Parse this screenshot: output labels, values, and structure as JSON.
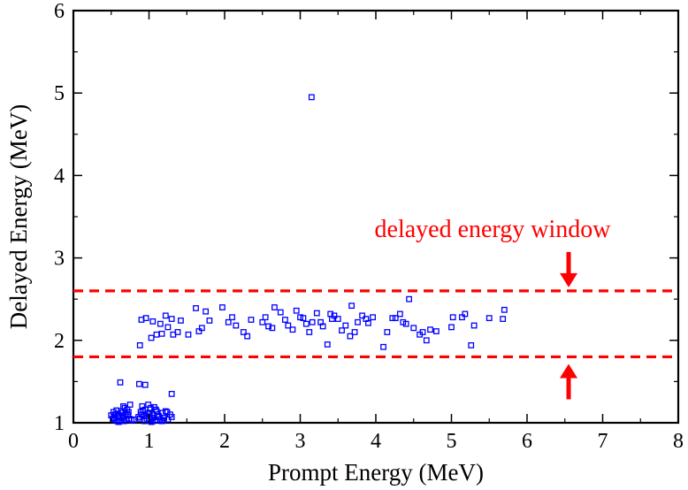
{
  "chart_data": {
    "type": "scatter",
    "title": "",
    "xlabel": "Prompt Energy (MeV)",
    "ylabel": "Delayed Energy (MeV)",
    "xlim": [
      0,
      8
    ],
    "ylim": [
      1,
      6
    ],
    "xticks": [
      0,
      1,
      2,
      3,
      4,
      5,
      6,
      7,
      8
    ],
    "yticks": [
      1,
      2,
      3,
      4,
      5,
      6
    ],
    "grid": false,
    "legend": "none",
    "marker": "open-square",
    "marker_color": "#0000ff",
    "annotation_color": "#ff0000",
    "annotation": {
      "text": "delayed energy window",
      "window_lines": [
        1.8,
        2.6
      ],
      "arrow_x": 6.55
    },
    "series": [
      {
        "points": [
          [
            0.52,
            1.05
          ],
          [
            0.55,
            1.1
          ],
          [
            0.57,
            1.15
          ],
          [
            0.6,
            1.08
          ],
          [
            0.62,
            1.03
          ],
          [
            0.64,
            1.12
          ],
          [
            0.66,
            1.06
          ],
          [
            0.68,
            1.18
          ],
          [
            0.7,
            1.04
          ],
          [
            0.72,
            1.09
          ],
          [
            0.75,
            1.22
          ],
          [
            0.53,
            1.13
          ],
          [
            0.58,
            1.02
          ],
          [
            0.61,
            1.07
          ],
          [
            0.63,
            1.14
          ],
          [
            0.67,
            1.02
          ],
          [
            0.69,
            1.11
          ],
          [
            0.71,
            1.16
          ],
          [
            0.74,
            1.05
          ],
          [
            0.77,
            1.03
          ],
          [
            0.56,
            1.03
          ],
          [
            0.59,
            1.11
          ],
          [
            0.65,
            1.09
          ],
          [
            0.73,
            1.13
          ],
          [
            0.62,
            1.49
          ],
          [
            0.54,
            1.06
          ],
          [
            0.8,
            1.04
          ],
          [
            0.5,
            1.09
          ],
          [
            0.66,
            1.2
          ],
          [
            0.6,
            1.01
          ],
          [
            0.88,
            1.05
          ],
          [
            0.9,
            1.1
          ],
          [
            0.92,
            1.15
          ],
          [
            0.94,
            1.02
          ],
          [
            0.96,
            1.08
          ],
          [
            0.98,
            1.12
          ],
          [
            1.0,
            1.04
          ],
          [
            1.02,
            1.18
          ],
          [
            1.04,
            1.06
          ],
          [
            1.06,
            1.1
          ],
          [
            1.08,
            1.03
          ],
          [
            1.1,
            1.14
          ],
          [
            1.12,
            1.07
          ],
          [
            0.91,
            1.2
          ],
          [
            0.93,
            1.09
          ],
          [
            0.97,
            1.05
          ],
          [
            1.01,
            1.11
          ],
          [
            1.05,
            1.02
          ],
          [
            1.09,
            1.16
          ],
          [
            1.13,
            1.08
          ],
          [
            1.15,
            1.04
          ],
          [
            1.18,
            1.12
          ],
          [
            1.2,
            1.06
          ],
          [
            1.22,
            1.14
          ],
          [
            1.25,
            1.04
          ],
          [
            1.3,
            1.07
          ],
          [
            0.99,
            1.22
          ],
          [
            0.89,
            1.13
          ],
          [
            1.03,
            1.01
          ],
          [
            1.07,
            1.19
          ],
          [
            1.11,
            1.1
          ],
          [
            0.95,
            1.16
          ],
          [
            1.17,
            1.02
          ],
          [
            0.86,
            1.07
          ],
          [
            0.87,
            1.47
          ],
          [
            0.95,
            1.46
          ],
          [
            1.3,
            1.35
          ],
          [
            1.28,
            1.1
          ],
          [
            1.24,
            1.13
          ],
          [
            1.19,
            1.03
          ],
          [
            0.88,
            1.94
          ],
          [
            0.9,
            2.25
          ],
          [
            0.96,
            2.27
          ],
          [
            1.03,
            2.03
          ],
          [
            1.05,
            2.23
          ],
          [
            1.1,
            2.07
          ],
          [
            1.15,
            2.2
          ],
          [
            1.17,
            2.08
          ],
          [
            1.22,
            2.3
          ],
          [
            1.25,
            2.16
          ],
          [
            1.3,
            2.26
          ],
          [
            1.32,
            2.07
          ],
          [
            1.38,
            2.1
          ],
          [
            1.42,
            2.24
          ],
          [
            1.52,
            2.07
          ],
          [
            1.62,
            2.39
          ],
          [
            1.66,
            2.11
          ],
          [
            1.7,
            2.15
          ],
          [
            1.75,
            2.35
          ],
          [
            1.8,
            2.24
          ],
          [
            1.97,
            2.4
          ],
          [
            2.05,
            2.22
          ],
          [
            2.1,
            2.28
          ],
          [
            2.15,
            2.18
          ],
          [
            2.25,
            2.1
          ],
          [
            2.3,
            2.05
          ],
          [
            2.35,
            2.25
          ],
          [
            2.5,
            2.22
          ],
          [
            2.54,
            2.28
          ],
          [
            2.58,
            2.17
          ],
          [
            2.63,
            2.15
          ],
          [
            2.66,
            2.4
          ],
          [
            2.74,
            2.34
          ],
          [
            2.8,
            2.25
          ],
          [
            2.84,
            2.18
          ],
          [
            2.9,
            2.13
          ],
          [
            2.95,
            2.36
          ],
          [
            3.0,
            2.28
          ],
          [
            3.04,
            2.27
          ],
          [
            3.08,
            2.2
          ],
          [
            3.12,
            2.1
          ],
          [
            3.16,
            2.22
          ],
          [
            3.22,
            2.33
          ],
          [
            3.27,
            2.22
          ],
          [
            3.3,
            2.17
          ],
          [
            3.36,
            1.95
          ],
          [
            3.4,
            2.32
          ],
          [
            3.42,
            2.26
          ],
          [
            3.45,
            2.3
          ],
          [
            3.5,
            2.26
          ],
          [
            3.55,
            2.12
          ],
          [
            3.6,
            2.18
          ],
          [
            3.66,
            2.05
          ],
          [
            3.68,
            2.42
          ],
          [
            3.72,
            2.1
          ],
          [
            3.76,
            2.22
          ],
          [
            3.82,
            2.3
          ],
          [
            3.87,
            2.26
          ],
          [
            3.9,
            2.21
          ],
          [
            3.96,
            2.28
          ],
          [
            4.1,
            1.92
          ],
          [
            4.15,
            2.1
          ],
          [
            4.22,
            2.27
          ],
          [
            4.26,
            2.27
          ],
          [
            4.32,
            2.32
          ],
          [
            4.36,
            2.22
          ],
          [
            4.4,
            2.2
          ],
          [
            4.44,
            2.5
          ],
          [
            4.5,
            2.15
          ],
          [
            4.58,
            2.07
          ],
          [
            4.62,
            2.1
          ],
          [
            4.67,
            2.0
          ],
          [
            4.72,
            2.13
          ],
          [
            4.8,
            2.11
          ],
          [
            5.0,
            2.16
          ],
          [
            5.02,
            2.28
          ],
          [
            5.14,
            2.28
          ],
          [
            5.18,
            2.32
          ],
          [
            5.26,
            1.94
          ],
          [
            5.3,
            2.18
          ],
          [
            5.5,
            2.27
          ],
          [
            5.68,
            2.26
          ],
          [
            5.7,
            2.37
          ],
          [
            3.15,
            4.95
          ]
        ]
      }
    ]
  }
}
